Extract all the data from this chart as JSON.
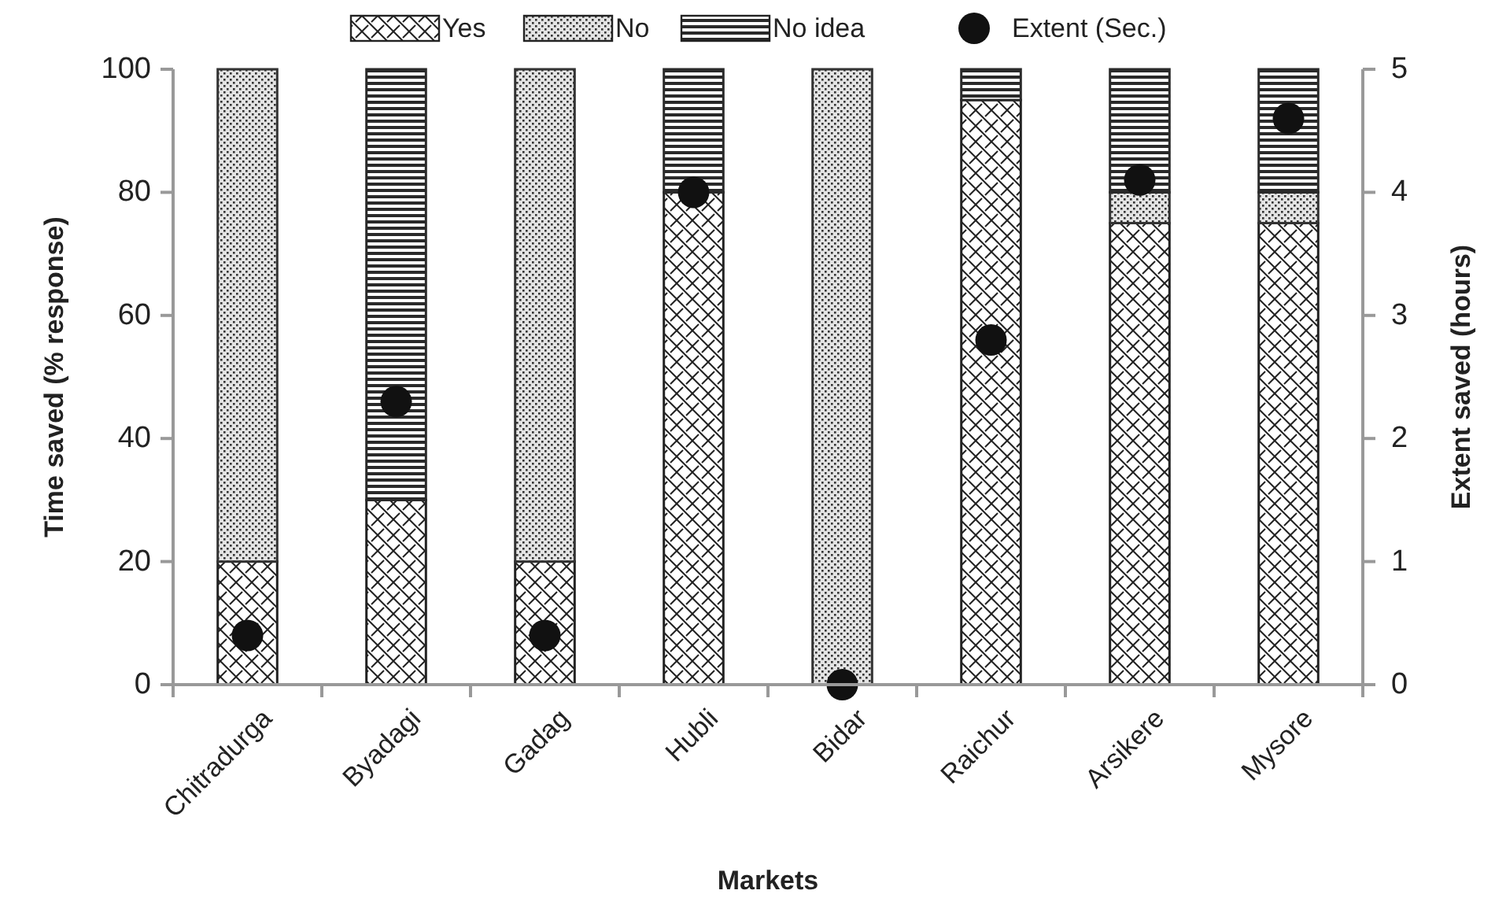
{
  "chart_data": {
    "type": "bar",
    "stacked": true,
    "xlabel": "Markets",
    "ylabel": "Time saved (% response)",
    "y2label": "Extent saved (hours)",
    "categories": [
      "Chitradurga",
      "Byadagi",
      "Gadag",
      "Hubli",
      "Bidar",
      "Raichur",
      "Arsikere",
      "Mysore"
    ],
    "series": [
      {
        "name": "Yes",
        "color": "#222222",
        "values": [
          20,
          30,
          20,
          80,
          0,
          95,
          75,
          75
        ]
      },
      {
        "name": "No",
        "color": "#333333",
        "values": [
          80,
          0,
          80,
          0,
          100,
          0,
          5,
          5
        ]
      },
      {
        "name": "No idea",
        "color": "#2a2a2a",
        "values": [
          0,
          70,
          0,
          20,
          0,
          5,
          20,
          20
        ]
      },
      {
        "name": "Extent (Sec.)",
        "type": "scatter",
        "axis": "y2",
        "marker": "circle",
        "color": "#111111",
        "values": [
          0.4,
          2.3,
          0.4,
          4.0,
          0,
          2.8,
          4.1,
          4.6
        ]
      }
    ],
    "ylim": [
      0,
      100
    ],
    "yticks": [
      0,
      20,
      40,
      60,
      80,
      100
    ],
    "y2lim": [
      0,
      5
    ],
    "y2ticks": [
      0,
      1,
      2,
      3,
      4,
      5
    ],
    "grid": false,
    "legend": "top"
  }
}
